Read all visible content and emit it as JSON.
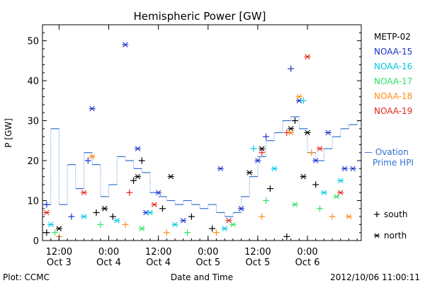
{
  "chart_data": {
    "type": "scatter",
    "title": "Hemispheric Power [GW]",
    "ylabel": "P [GW]",
    "xlabel": "Date and Time",
    "ylim": [
      0,
      54
    ],
    "yticks": [
      0,
      10,
      20,
      30,
      40,
      50
    ],
    "xlim": [
      "2012-10-03 08:00",
      "2012-10-06 13:00"
    ],
    "xticks": [
      {
        "time": "2012-10-03 12:00",
        "line1": "12:00",
        "line2": "Oct 3"
      },
      {
        "time": "2012-10-04 00:00",
        "line1": "0:00",
        "line2": "Oct 4"
      },
      {
        "time": "2012-10-04 12:00",
        "line1": "12:00",
        "line2": "Oct 4"
      },
      {
        "time": "2012-10-05 00:00",
        "line1": "0:00",
        "line2": "Oct 5"
      },
      {
        "time": "2012-10-05 12:00",
        "line1": "12:00",
        "line2": "Oct 5"
      },
      {
        "time": "2012-10-06 00:00",
        "line1": "0:00",
        "line2": "Oct 6"
      }
    ],
    "legend_placement": "right",
    "series": [
      {
        "name": "METP-02",
        "color": "#000000",
        "points": [
          {
            "time": "2012-10-03 09:00",
            "value": 2,
            "marker": "plus"
          },
          {
            "time": "2012-10-03 12:00",
            "value": 3,
            "marker": "star"
          },
          {
            "time": "2012-10-03 21:00",
            "value": 7,
            "marker": "plus"
          },
          {
            "time": "2012-10-03 23:00",
            "value": 8,
            "marker": "star"
          },
          {
            "time": "2012-10-04 01:00",
            "value": 6,
            "marker": "plus"
          },
          {
            "time": "2012-10-04 06:00",
            "value": 15,
            "marker": "plus"
          },
          {
            "time": "2012-10-04 07:00",
            "value": 16,
            "marker": "star"
          },
          {
            "time": "2012-10-04 08:00",
            "value": 20,
            "marker": "plus"
          },
          {
            "time": "2012-10-04 13:00",
            "value": 8,
            "marker": "plus"
          },
          {
            "time": "2012-10-04 15:00",
            "value": 16,
            "marker": "star"
          },
          {
            "time": "2012-10-04 20:00",
            "value": 6,
            "marker": "plus"
          },
          {
            "time": "2012-10-05 01:00",
            "value": 3,
            "marker": "plus"
          },
          {
            "time": "2012-10-05 10:00",
            "value": 17,
            "marker": "star"
          },
          {
            "time": "2012-10-05 13:00",
            "value": 23,
            "marker": "star"
          },
          {
            "time": "2012-10-05 15:00",
            "value": 13,
            "marker": "plus"
          },
          {
            "time": "2012-10-05 19:00",
            "value": 1,
            "marker": "plus"
          },
          {
            "time": "2012-10-05 20:00",
            "value": 28,
            "marker": "star"
          },
          {
            "time": "2012-10-05 21:00",
            "value": 30,
            "marker": "plus"
          },
          {
            "time": "2012-10-05 23:00",
            "value": 16,
            "marker": "star"
          },
          {
            "time": "2012-10-06 00:00",
            "value": 27,
            "marker": "star"
          },
          {
            "time": "2012-10-06 02:00",
            "value": 14,
            "marker": "plus"
          }
        ]
      },
      {
        "name": "NOAA-15",
        "color": "#1a33cc",
        "points": [
          {
            "time": "2012-10-03 09:00",
            "value": 9,
            "marker": "plus"
          },
          {
            "time": "2012-10-03 15:00",
            "value": 6,
            "marker": "plus"
          },
          {
            "time": "2012-10-03 19:00",
            "value": 20,
            "marker": "plus"
          },
          {
            "time": "2012-10-03 20:00",
            "value": 33,
            "marker": "star"
          },
          {
            "time": "2012-10-04 04:00",
            "value": 49,
            "marker": "star"
          },
          {
            "time": "2012-10-04 07:00",
            "value": 23,
            "marker": "star"
          },
          {
            "time": "2012-10-04 09:00",
            "value": 7,
            "marker": "star"
          },
          {
            "time": "2012-10-04 12:00",
            "value": 12,
            "marker": "star"
          },
          {
            "time": "2012-10-04 18:00",
            "value": 5,
            "marker": "star"
          },
          {
            "time": "2012-10-05 03:00",
            "value": 18,
            "marker": "star"
          },
          {
            "time": "2012-10-05 08:00",
            "value": 8,
            "marker": "star"
          },
          {
            "time": "2012-10-05 12:00",
            "value": 20,
            "marker": "star"
          },
          {
            "time": "2012-10-05 14:00",
            "value": 26,
            "marker": "plus"
          },
          {
            "time": "2012-10-05 20:00",
            "value": 43,
            "marker": "plus"
          },
          {
            "time": "2012-10-05 22:00",
            "value": 35,
            "marker": "star"
          },
          {
            "time": "2012-10-06 02:00",
            "value": 20,
            "marker": "star"
          },
          {
            "time": "2012-10-06 05:00",
            "value": 27,
            "marker": "star"
          },
          {
            "time": "2012-10-06 09:00",
            "value": 18,
            "marker": "star"
          },
          {
            "time": "2012-10-06 11:00",
            "value": 18,
            "marker": "star"
          }
        ]
      },
      {
        "name": "NOAA-16",
        "color": "#00c8e0",
        "points": [
          {
            "time": "2012-10-03 10:00",
            "value": 4,
            "marker": "star"
          },
          {
            "time": "2012-10-03 18:00",
            "value": 6,
            "marker": "star"
          },
          {
            "time": "2012-10-04 02:00",
            "value": 5,
            "marker": "star"
          },
          {
            "time": "2012-10-04 10:00",
            "value": 7,
            "marker": "star"
          },
          {
            "time": "2012-10-04 16:00",
            "value": 4,
            "marker": "star"
          },
          {
            "time": "2012-10-05 04:00",
            "value": 3,
            "marker": "star"
          },
          {
            "time": "2012-10-05 11:00",
            "value": 23,
            "marker": "plus"
          },
          {
            "time": "2012-10-05 16:00",
            "value": 18,
            "marker": "star"
          },
          {
            "time": "2012-10-05 23:00",
            "value": 35,
            "marker": "plus"
          },
          {
            "time": "2012-10-06 04:00",
            "value": 12,
            "marker": "star"
          },
          {
            "time": "2012-10-06 08:00",
            "value": 15,
            "marker": "star"
          }
        ]
      },
      {
        "name": "NOAA-17",
        "color": "#33e066",
        "points": [
          {
            "time": "2012-10-03 11:00",
            "value": 2,
            "marker": "plus"
          },
          {
            "time": "2012-10-03 22:00",
            "value": 4,
            "marker": "plus"
          },
          {
            "time": "2012-10-04 08:00",
            "value": 3,
            "marker": "star"
          },
          {
            "time": "2012-10-04 19:00",
            "value": 2,
            "marker": "plus"
          },
          {
            "time": "2012-10-05 06:00",
            "value": 4,
            "marker": "star"
          },
          {
            "time": "2012-10-05 14:00",
            "value": 10,
            "marker": "plus"
          },
          {
            "time": "2012-10-05 21:00",
            "value": 9,
            "marker": "star"
          },
          {
            "time": "2012-10-06 03:00",
            "value": 8,
            "marker": "plus"
          },
          {
            "time": "2012-10-06 07:00",
            "value": 11,
            "marker": "star"
          }
        ]
      },
      {
        "name": "NOAA-18",
        "color": "#ff8c1a",
        "points": [
          {
            "time": "2012-10-03 12:00",
            "value": 1,
            "marker": "plus"
          },
          {
            "time": "2012-10-03 20:00",
            "value": 21,
            "marker": "star"
          },
          {
            "time": "2012-10-04 04:00",
            "value": 4,
            "marker": "plus"
          },
          {
            "time": "2012-10-04 14:00",
            "value": 2,
            "marker": "plus"
          },
          {
            "time": "2012-10-05 02:00",
            "value": 2,
            "marker": "plus"
          },
          {
            "time": "2012-10-05 13:00",
            "value": 6,
            "marker": "plus"
          },
          {
            "time": "2012-10-05 20:00",
            "value": 27,
            "marker": "star"
          },
          {
            "time": "2012-10-05 22:00",
            "value": 36,
            "marker": "star"
          },
          {
            "time": "2012-10-06 01:00",
            "value": 22,
            "marker": "plus"
          },
          {
            "time": "2012-10-06 06:00",
            "value": 6,
            "marker": "plus"
          },
          {
            "time": "2012-10-06 10:00",
            "value": 6,
            "marker": "star"
          }
        ]
      },
      {
        "name": "NOAA-19",
        "color": "#e0281a",
        "points": [
          {
            "time": "2012-10-03 09:00",
            "value": 7,
            "marker": "star"
          },
          {
            "time": "2012-10-03 18:00",
            "value": 12,
            "marker": "star"
          },
          {
            "time": "2012-10-04 05:00",
            "value": 12,
            "marker": "plus"
          },
          {
            "time": "2012-10-04 11:00",
            "value": 9,
            "marker": "star"
          },
          {
            "time": "2012-10-05 05:00",
            "value": 5,
            "marker": "star"
          },
          {
            "time": "2012-10-05 13:00",
            "value": 22,
            "marker": "plus"
          },
          {
            "time": "2012-10-05 19:00",
            "value": 27,
            "marker": "plus"
          },
          {
            "time": "2012-10-06 00:00",
            "value": 46,
            "marker": "star"
          },
          {
            "time": "2012-10-06 03:00",
            "value": 23,
            "marker": "star"
          },
          {
            "time": "2012-10-06 08:00",
            "value": 12,
            "marker": "star"
          }
        ]
      }
    ],
    "ovation": {
      "name": "— Ovation Prime HPI",
      "color": "#3070d0",
      "style": "step, dotted verticals",
      "points": [
        {
          "time": "2012-10-03 08:00",
          "value": 9
        },
        {
          "time": "2012-10-03 10:00",
          "value": 28
        },
        {
          "time": "2012-10-03 12:00",
          "value": 9
        },
        {
          "time": "2012-10-03 14:00",
          "value": 19
        },
        {
          "time": "2012-10-03 16:00",
          "value": 13
        },
        {
          "time": "2012-10-03 18:00",
          "value": 22
        },
        {
          "time": "2012-10-03 20:00",
          "value": 19
        },
        {
          "time": "2012-10-03 22:00",
          "value": 11
        },
        {
          "time": "2012-10-04 00:00",
          "value": 14
        },
        {
          "time": "2012-10-04 02:00",
          "value": 21
        },
        {
          "time": "2012-10-04 04:00",
          "value": 20
        },
        {
          "time": "2012-10-04 06:00",
          "value": 18
        },
        {
          "time": "2012-10-04 08:00",
          "value": 17
        },
        {
          "time": "2012-10-04 10:00",
          "value": 12
        },
        {
          "time": "2012-10-04 12:00",
          "value": 11
        },
        {
          "time": "2012-10-04 14:00",
          "value": 10
        },
        {
          "time": "2012-10-04 16:00",
          "value": 9
        },
        {
          "time": "2012-10-04 18:00",
          "value": 10
        },
        {
          "time": "2012-10-04 20:00",
          "value": 9
        },
        {
          "time": "2012-10-04 22:00",
          "value": 8
        },
        {
          "time": "2012-10-05 00:00",
          "value": 9
        },
        {
          "time": "2012-10-05 02:00",
          "value": 7
        },
        {
          "time": "2012-10-05 04:00",
          "value": 6
        },
        {
          "time": "2012-10-05 06:00",
          "value": 7
        },
        {
          "time": "2012-10-05 08:00",
          "value": 11
        },
        {
          "time": "2012-10-05 10:00",
          "value": 16
        },
        {
          "time": "2012-10-05 12:00",
          "value": 21
        },
        {
          "time": "2012-10-05 14:00",
          "value": 25
        },
        {
          "time": "2012-10-05 16:00",
          "value": 27
        },
        {
          "time": "2012-10-05 18:00",
          "value": 30
        },
        {
          "time": "2012-10-05 20:00",
          "value": 31
        },
        {
          "time": "2012-10-05 22:00",
          "value": 28
        },
        {
          "time": "2012-10-06 00:00",
          "value": 22
        },
        {
          "time": "2012-10-06 02:00",
          "value": 20
        },
        {
          "time": "2012-10-06 04:00",
          "value": 23
        },
        {
          "time": "2012-10-06 06:00",
          "value": 26
        },
        {
          "time": "2012-10-06 08:00",
          "value": 28
        },
        {
          "time": "2012-10-06 10:00",
          "value": 29
        },
        {
          "time": "2012-10-06 12:00",
          "value": 30
        }
      ]
    },
    "marker_legend": [
      {
        "marker": "plus",
        "label": "south"
      },
      {
        "marker": "star",
        "label": "north"
      }
    ]
  },
  "footer": {
    "left": "Plot: CCMC",
    "center": "Date and Time",
    "right": "2012/10/06 11:00:11"
  }
}
